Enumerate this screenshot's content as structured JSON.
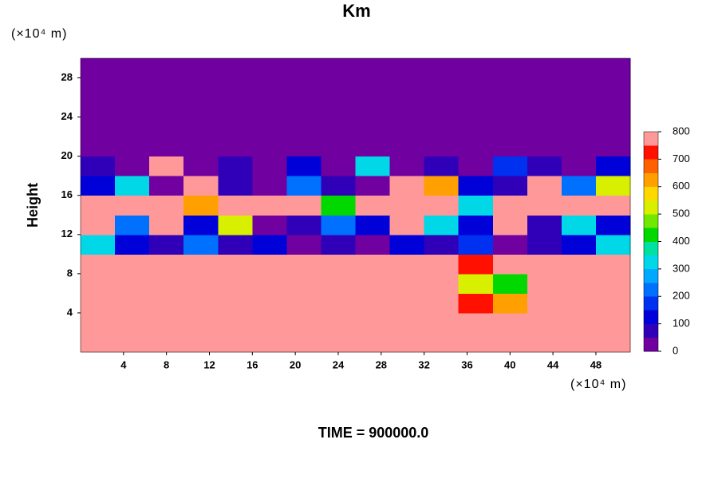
{
  "chart_data": {
    "type": "contour",
    "title": "Km",
    "x_unit": "(×10⁴ m)",
    "y_unit": "(×10⁴ m)",
    "ylabel": "Height",
    "footer": "TIME = 900000.0",
    "xlim": [
      0,
      51.2
    ],
    "ylim": [
      0,
      30
    ],
    "xticks": [
      4,
      8,
      12,
      16,
      20,
      24,
      28,
      32,
      36,
      40,
      44,
      48
    ],
    "yticks": [
      4,
      8,
      12,
      16,
      20,
      24,
      28
    ],
    "x": [
      0,
      3.2,
      6.4,
      9.6,
      12.8,
      16,
      19.2,
      22.4,
      25.6,
      28.8,
      32,
      35.2,
      38.4,
      41.6,
      44.8,
      48,
      51.2
    ],
    "y": [
      0,
      2,
      4,
      6,
      8,
      10,
      12,
      14,
      16,
      18,
      20,
      22,
      24,
      26,
      28,
      30
    ],
    "z": [
      [
        800,
        800,
        800,
        800,
        800,
        800,
        800,
        800,
        800,
        800,
        800,
        800,
        800,
        800,
        800,
        800
      ],
      [
        800,
        800,
        800,
        800,
        800,
        800,
        760,
        800,
        800,
        800,
        800,
        800,
        800,
        800,
        800,
        800
      ],
      [
        800,
        800,
        800,
        800,
        800,
        800,
        800,
        800,
        800,
        800,
        800,
        700,
        600,
        800,
        800,
        800
      ],
      [
        800,
        800,
        800,
        800,
        800,
        800,
        800,
        800,
        800,
        800,
        800,
        500,
        400,
        800,
        800,
        800
      ],
      [
        800,
        800,
        800,
        800,
        800,
        800,
        800,
        800,
        800,
        800,
        800,
        700,
        800,
        800,
        800,
        780
      ],
      [
        300,
        100,
        50,
        200,
        50,
        100,
        0,
        50,
        0,
        100,
        50,
        150,
        0,
        50,
        100,
        300
      ],
      [
        800,
        200,
        800,
        100,
        500,
        0,
        50,
        200,
        100,
        800,
        300,
        100,
        800,
        50,
        300,
        100
      ],
      [
        800,
        800,
        800,
        600,
        800,
        800,
        800,
        400,
        800,
        800,
        800,
        300,
        800,
        800,
        800,
        800
      ],
      [
        100,
        300,
        0,
        800,
        50,
        0,
        200,
        50,
        0,
        800,
        600,
        100,
        50,
        800,
        200,
        500
      ],
      [
        50,
        0,
        800,
        0,
        50,
        0,
        100,
        0,
        300,
        0,
        50,
        0,
        150,
        50,
        0,
        100
      ],
      [
        0,
        0,
        0,
        0,
        0,
        0,
        0,
        0,
        0,
        0,
        0,
        0,
        0,
        0,
        0,
        0
      ],
      [
        0,
        0,
        0,
        0,
        0,
        0,
        0,
        0,
        0,
        0,
        0,
        0,
        0,
        0,
        0,
        0
      ],
      [
        0,
        0,
        0,
        0,
        0,
        0,
        0,
        0,
        0,
        0,
        0,
        0,
        0,
        0,
        0,
        0
      ],
      [
        0,
        0,
        0,
        0,
        0,
        0,
        0,
        0,
        0,
        0,
        0,
        0,
        0,
        0,
        0,
        0
      ],
      [
        0,
        0,
        0,
        0,
        0,
        0,
        0,
        0,
        0,
        0,
        0,
        0,
        0,
        0,
        0,
        0
      ]
    ],
    "colorbar": {
      "levels": [
        0,
        50,
        100,
        150,
        200,
        250,
        300,
        350,
        400,
        450,
        500,
        550,
        600,
        650,
        700,
        750,
        800
      ],
      "colors": [
        "#7000a0",
        "#3000b8",
        "#0000d8",
        "#0030f0",
        "#0070ff",
        "#00a8ff",
        "#00d8e8",
        "#00e0a0",
        "#00d800",
        "#70e800",
        "#d8f000",
        "#ffd800",
        "#ffa000",
        "#ff6000",
        "#ff1000",
        "#ff9898"
      ],
      "ticks": [
        0,
        100,
        200,
        300,
        400,
        500,
        600,
        700,
        800
      ]
    }
  }
}
